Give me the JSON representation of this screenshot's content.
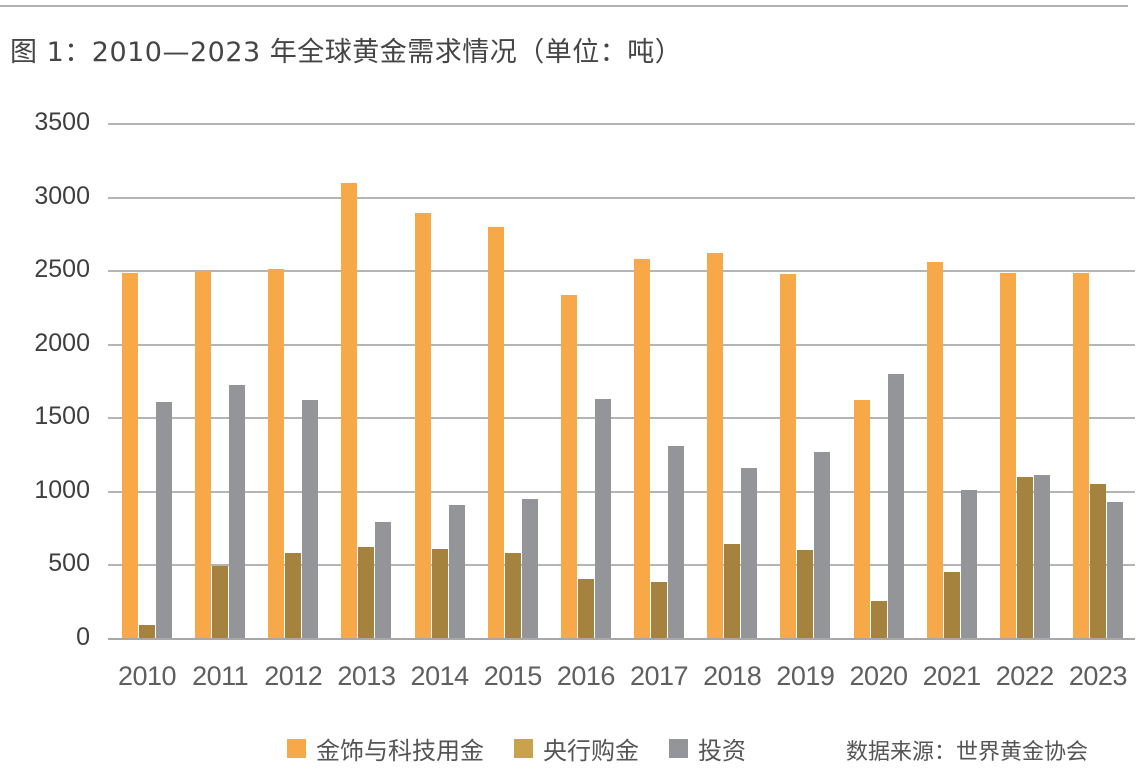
{
  "header": {
    "title": "图 1：2010—2023 年全球黄金需求情况（单位：吨）"
  },
  "source": "数据来源：世界黄金协会",
  "colors": {
    "jewelry_tech": "#f7a848",
    "central_bank_bar": "#a5823e",
    "central_bank_legend": "#c9a24c",
    "investment": "#939598",
    "gridline": "#b5b5b5",
    "text": "#555555"
  },
  "legend": [
    {
      "label": "金饰与科技用金",
      "color": "#f7a848"
    },
    {
      "label": "央行购金",
      "color": "#c9a24c"
    },
    {
      "label": "投资",
      "color": "#939598"
    }
  ],
  "chart_data": {
    "type": "bar",
    "title": "图 1：2010—2023 年全球黄金需求情况（单位：吨）",
    "xlabel": "",
    "ylabel": "吨",
    "ylim": [
      0,
      3500
    ],
    "yticks": [
      0,
      500,
      1000,
      1500,
      2000,
      2500,
      3000,
      3500
    ],
    "grid": true,
    "legend_position": "bottom",
    "categories": [
      "2010",
      "2011",
      "2012",
      "2013",
      "2014",
      "2015",
      "2016",
      "2017",
      "2018",
      "2019",
      "2020",
      "2021",
      "2022",
      "2023"
    ],
    "series": [
      {
        "name": "金饰与科技用金",
        "color": "#f7a848",
        "values": [
          2495,
          2510,
          2520,
          3103,
          2899,
          2804,
          2343,
          2587,
          2628,
          2485,
          1628,
          2567,
          2497,
          2497
        ]
      },
      {
        "name": "央行购金",
        "color": "#a5823e",
        "values": [
          100,
          500,
          591,
          631,
          618,
          590,
          414,
          394,
          652,
          611,
          265,
          462,
          1107,
          1061
        ]
      },
      {
        "name": "投资",
        "color": "#939598",
        "values": [
          1616,
          1731,
          1630,
          801,
          917,
          957,
          1636,
          1317,
          1168,
          1276,
          1806,
          1019,
          1120,
          939
        ]
      }
    ],
    "annotations": [
      "数据来源：世界黄金协会"
    ]
  }
}
